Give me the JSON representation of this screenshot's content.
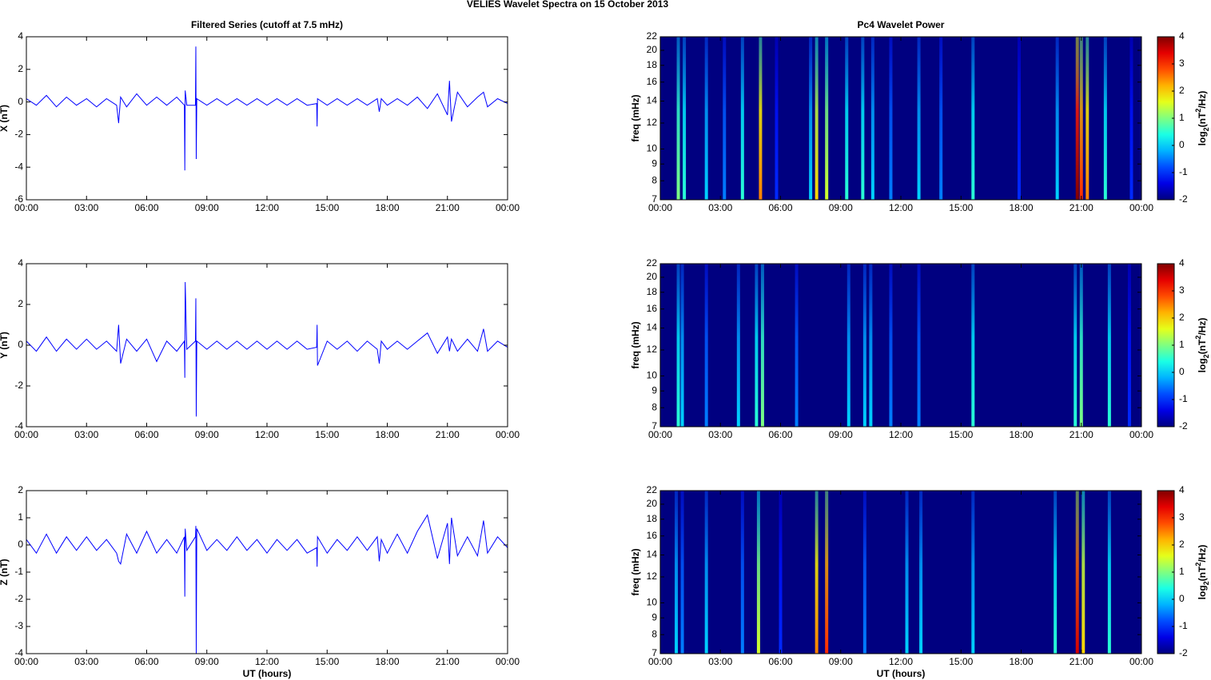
{
  "title": "VELIES Wavelet Spectra on 15 October   2013",
  "chart_data": [
    {
      "type": "line",
      "title": "Filtered Series (cutoff at 7.5 mHz)",
      "ylabel": "X (nT)",
      "color": "#0000ff",
      "xlim": [
        0,
        24
      ],
      "xticks": [
        {
          "value": 0,
          "label": "00:00"
        },
        {
          "value": 3,
          "label": "03:00"
        },
        {
          "value": 6,
          "label": "06:00"
        },
        {
          "value": 9,
          "label": "09:00"
        },
        {
          "value": 12,
          "label": "12:00"
        },
        {
          "value": 15,
          "label": "15:00"
        },
        {
          "value": 18,
          "label": "18:00"
        },
        {
          "value": 21,
          "label": "21:00"
        },
        {
          "value": 24,
          "label": "00:00"
        }
      ],
      "ylim": [
        -6,
        4
      ],
      "yticks": [
        -6,
        -4,
        -2,
        0,
        2,
        4
      ],
      "x": [
        0,
        0.5,
        1,
        1.5,
        2,
        2.5,
        3,
        3.5,
        4,
        4.5,
        4.6,
        4.7,
        5,
        5.5,
        6,
        6.5,
        7,
        7.5,
        7.88,
        7.9,
        7.92,
        8,
        8.43,
        8.45,
        8.47,
        8.5,
        9,
        9.5,
        10,
        10.5,
        11,
        11.5,
        12,
        12.5,
        13,
        13.5,
        14,
        14.48,
        14.5,
        14.52,
        15,
        15.5,
        16,
        16.5,
        17,
        17.5,
        17.6,
        17.7,
        18,
        18.5,
        19,
        19.5,
        20,
        20.5,
        21,
        21.1,
        21.2,
        21.5,
        22,
        22.5,
        22.8,
        23,
        23.5,
        24
      ],
      "values": [
        0.2,
        -0.2,
        0.4,
        -0.3,
        0.3,
        -0.2,
        0.2,
        -0.3,
        0.2,
        -0.2,
        -1.3,
        0.3,
        -0.3,
        0.5,
        -0.2,
        0.3,
        -0.2,
        0.3,
        -0.2,
        -4.2,
        0.7,
        -0.2,
        -0.2,
        3.4,
        -3.5,
        0.2,
        -0.2,
        0.2,
        -0.2,
        0.2,
        -0.2,
        0.2,
        -0.2,
        0.2,
        -0.2,
        0.2,
        -0.2,
        -0.1,
        -1.5,
        0.2,
        -0.2,
        0.2,
        -0.2,
        0.2,
        -0.2,
        0.2,
        -0.6,
        0.2,
        -0.2,
        0.2,
        -0.2,
        0.3,
        -0.4,
        0.5,
        -0.8,
        1.3,
        -1.2,
        0.6,
        -0.3,
        0.3,
        0.6,
        -0.3,
        0.2,
        -0.1
      ]
    },
    {
      "type": "line",
      "ylabel": "Y (nT)",
      "color": "#0000ff",
      "xlim": [
        0,
        24
      ],
      "xticks": [
        {
          "value": 0,
          "label": "00:00"
        },
        {
          "value": 3,
          "label": "03:00"
        },
        {
          "value": 6,
          "label": "06:00"
        },
        {
          "value": 9,
          "label": "09:00"
        },
        {
          "value": 12,
          "label": "12:00"
        },
        {
          "value": 15,
          "label": "15:00"
        },
        {
          "value": 18,
          "label": "18:00"
        },
        {
          "value": 21,
          "label": "21:00"
        },
        {
          "value": 24,
          "label": "00:00"
        }
      ],
      "ylim": [
        -4,
        4
      ],
      "yticks": [
        -4,
        -2,
        0,
        2,
        4
      ],
      "x": [
        0,
        0.5,
        1,
        1.5,
        2,
        2.5,
        3,
        3.5,
        4,
        4.5,
        4.6,
        4.7,
        5,
        5.5,
        6,
        6.5,
        7,
        7.5,
        7.88,
        7.9,
        7.92,
        8,
        8.43,
        8.45,
        8.47,
        8.5,
        9,
        9.5,
        10,
        10.5,
        11,
        11.5,
        12,
        12.5,
        13,
        13.5,
        14,
        14.48,
        14.5,
        14.52,
        15,
        15.5,
        16,
        16.5,
        17,
        17.5,
        17.6,
        17.7,
        18,
        18.5,
        19,
        19.5,
        20,
        20.5,
        21,
        21.1,
        21.2,
        21.5,
        22,
        22.5,
        22.8,
        23,
        23.5,
        24
      ],
      "values": [
        0.2,
        -0.3,
        0.4,
        -0.3,
        0.3,
        -0.2,
        0.3,
        -0.2,
        0.2,
        -0.3,
        1.0,
        -0.9,
        0.3,
        -0.3,
        0.3,
        -0.8,
        0.2,
        -0.3,
        0.2,
        -1.6,
        3.1,
        -0.2,
        0.2,
        2.3,
        -3.5,
        0.2,
        -0.2,
        0.2,
        -0.2,
        0.2,
        -0.2,
        0.2,
        -0.2,
        0.2,
        -0.2,
        0.2,
        -0.2,
        -0.1,
        1.0,
        -1.0,
        0.2,
        -0.2,
        0.2,
        -0.3,
        0.2,
        -0.2,
        -0.9,
        0.2,
        -0.2,
        0.2,
        -0.2,
        0.2,
        0.6,
        -0.4,
        0.4,
        -0.3,
        0.3,
        -0.3,
        0.3,
        -0.3,
        0.8,
        -0.3,
        0.2,
        -0.1
      ]
    },
    {
      "type": "line",
      "ylabel": "Z (nT)",
      "xlabel": "UT (hours)",
      "color": "#0000ff",
      "xlim": [
        0,
        24
      ],
      "xticks": [
        {
          "value": 0,
          "label": "00:00"
        },
        {
          "value": 3,
          "label": "03:00"
        },
        {
          "value": 6,
          "label": "06:00"
        },
        {
          "value": 9,
          "label": "09:00"
        },
        {
          "value": 12,
          "label": "12:00"
        },
        {
          "value": 15,
          "label": "15:00"
        },
        {
          "value": 18,
          "label": "18:00"
        },
        {
          "value": 21,
          "label": "21:00"
        },
        {
          "value": 24,
          "label": "00:00"
        }
      ],
      "ylim": [
        -4,
        2
      ],
      "yticks": [
        -4,
        -3,
        -2,
        -1,
        0,
        1,
        2
      ],
      "x": [
        0,
        0.5,
        1,
        1.5,
        2,
        2.5,
        3,
        3.5,
        4,
        4.5,
        4.6,
        4.7,
        5,
        5.5,
        6,
        6.5,
        7,
        7.5,
        7.88,
        7.9,
        7.92,
        8,
        8.43,
        8.45,
        8.47,
        8.5,
        9,
        9.5,
        10,
        10.5,
        11,
        11.5,
        12,
        12.5,
        13,
        13.5,
        14,
        14.48,
        14.5,
        14.52,
        15,
        15.5,
        16,
        16.5,
        17,
        17.5,
        17.6,
        17.7,
        18,
        18.5,
        19,
        19.5,
        20,
        20.5,
        21,
        21.1,
        21.2,
        21.5,
        22,
        22.5,
        22.8,
        23,
        23.5,
        24
      ],
      "values": [
        0.2,
        -0.3,
        0.4,
        -0.3,
        0.3,
        -0.2,
        0.3,
        -0.2,
        0.2,
        -0.3,
        -0.6,
        -0.7,
        0.4,
        -0.3,
        0.5,
        -0.3,
        0.2,
        -0.3,
        0.3,
        -1.9,
        0.6,
        -0.2,
        0.3,
        0.7,
        -4.0,
        0.6,
        -0.2,
        0.2,
        -0.2,
        0.3,
        -0.2,
        0.2,
        -0.3,
        0.2,
        -0.2,
        0.2,
        -0.3,
        -0.1,
        -0.8,
        0.3,
        -0.3,
        0.2,
        -0.2,
        0.3,
        -0.2,
        0.3,
        -0.6,
        0.2,
        -0.3,
        0.4,
        -0.3,
        0.5,
        1.1,
        -0.5,
        0.8,
        -0.7,
        1.0,
        -0.4,
        0.3,
        -0.4,
        0.9,
        -0.3,
        0.3,
        -0.1
      ]
    },
    {
      "type": "spectrogram",
      "title": "Pc4 Wavelet Power",
      "ylabel": "freq (mHz)",
      "colormap": "jet",
      "log_y": true,
      "colorbar_label": [
        "log",
        "2",
        "(nT",
        "2",
        "/Hz)"
      ],
      "xlim": [
        0,
        24
      ],
      "xticks": [
        {
          "value": 0,
          "label": "00:00"
        },
        {
          "value": 3,
          "label": "03:00"
        },
        {
          "value": 6,
          "label": "06:00"
        },
        {
          "value": 9,
          "label": "09:00"
        },
        {
          "value": 12,
          "label": "12:00"
        },
        {
          "value": 15,
          "label": "15:00"
        },
        {
          "value": 18,
          "label": "18:00"
        },
        {
          "value": 21,
          "label": "21:00"
        },
        {
          "value": 24,
          "label": "00:00"
        }
      ],
      "ylim": [
        7,
        22
      ],
      "yticks": [
        7,
        8,
        9,
        10,
        12,
        14,
        16,
        18,
        20,
        22
      ],
      "clim": [
        -2,
        4
      ],
      "cticks": [
        -2,
        -1,
        0,
        1,
        2,
        3,
        4
      ],
      "x": [
        0.9,
        1.2,
        2.3,
        3.2,
        4.1,
        5.0,
        5.8,
        7.5,
        7.8,
        8.3,
        9.3,
        10.1,
        10.6,
        11.5,
        12.9,
        14.0,
        15.6,
        17.9,
        19.8,
        20.8,
        21.0,
        21.3,
        22.2,
        23.5
      ],
      "values": [
        1,
        0.5,
        0,
        -0.5,
        0.5,
        2.5,
        -1,
        0,
        2,
        1.5,
        0.5,
        0.5,
        0,
        -0.5,
        0,
        -0.5,
        0.5,
        -1,
        0,
        4,
        3,
        2.5,
        0.5,
        -1
      ]
    },
    {
      "type": "spectrogram",
      "ylabel": "freq (mHz)",
      "colormap": "jet",
      "log_y": true,
      "colorbar_label": [
        "log",
        "2",
        "(nT",
        "2",
        "/Hz)"
      ],
      "xlim": [
        0,
        24
      ],
      "xticks": [
        {
          "value": 0,
          "label": "00:00"
        },
        {
          "value": 3,
          "label": "03:00"
        },
        {
          "value": 6,
          "label": "06:00"
        },
        {
          "value": 9,
          "label": "09:00"
        },
        {
          "value": 12,
          "label": "12:00"
        },
        {
          "value": 15,
          "label": "15:00"
        },
        {
          "value": 18,
          "label": "18:00"
        },
        {
          "value": 21,
          "label": "21:00"
        },
        {
          "value": 24,
          "label": "00:00"
        }
      ],
      "ylim": [
        7,
        22
      ],
      "yticks": [
        7,
        8,
        9,
        10,
        12,
        14,
        16,
        18,
        20,
        22
      ],
      "clim": [
        -2,
        4
      ],
      "cticks": [
        -2,
        -1,
        0,
        1,
        2,
        3,
        4
      ],
      "x": [
        0.9,
        1.1,
        2.3,
        3.9,
        4.8,
        5.1,
        6.8,
        9.4,
        10.2,
        10.5,
        11.5,
        12.9,
        15.6,
        20.7,
        21.0,
        22.4,
        23.4
      ],
      "values": [
        0.5,
        0,
        -0.5,
        0,
        0.5,
        1,
        -0.5,
        0,
        0,
        0,
        -0.5,
        -0.5,
        0.5,
        0.5,
        1,
        0.5,
        -1
      ]
    },
    {
      "type": "spectrogram",
      "ylabel": "freq (mHz)",
      "xlabel": "UT (hours)",
      "colormap": "jet",
      "log_y": true,
      "colorbar_label": [
        "log",
        "2",
        "(nT",
        "2",
        "/Hz)"
      ],
      "xlim": [
        0,
        24
      ],
      "xticks": [
        {
          "value": 0,
          "label": "00:00"
        },
        {
          "value": 3,
          "label": "03:00"
        },
        {
          "value": 6,
          "label": "06:00"
        },
        {
          "value": 9,
          "label": "09:00"
        },
        {
          "value": 12,
          "label": "12:00"
        },
        {
          "value": 15,
          "label": "15:00"
        },
        {
          "value": 18,
          "label": "18:00"
        },
        {
          "value": 21,
          "label": "21:00"
        },
        {
          "value": 24,
          "label": "00:00"
        }
      ],
      "ylim": [
        7,
        22
      ],
      "yticks": [
        7,
        8,
        9,
        10,
        12,
        14,
        16,
        18,
        20,
        22
      ],
      "clim": [
        -2,
        4
      ],
      "cticks": [
        -2,
        -1,
        0,
        1,
        2,
        3,
        4
      ],
      "x": [
        0.8,
        1.1,
        2.3,
        4.1,
        4.9,
        6.0,
        7.8,
        8.3,
        10.2,
        12.3,
        13.0,
        15.6,
        19.7,
        20.8,
        21.1,
        22.4
      ],
      "values": [
        0,
        -0.5,
        0,
        -0.5,
        1.5,
        -1,
        2.5,
        3,
        -0.5,
        0,
        0,
        0,
        0.5,
        3.5,
        2,
        0.5
      ]
    }
  ]
}
